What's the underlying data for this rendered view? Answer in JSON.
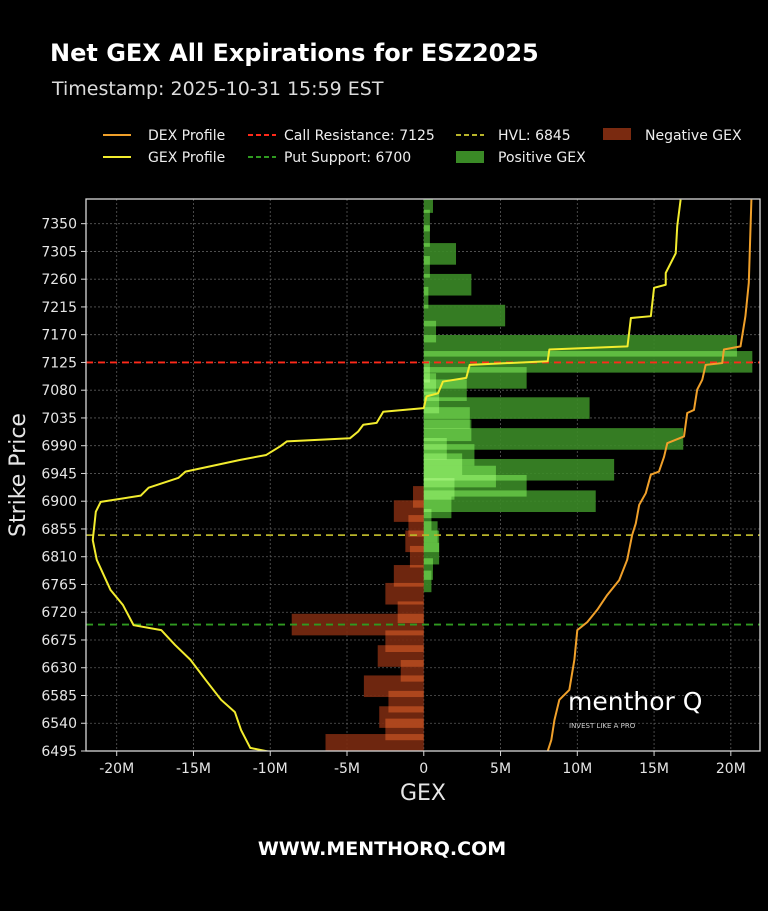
{
  "header": {
    "title": "Net GEX All Expirations for ESZ2025",
    "timestamp": "Timestamp: 2025-10-31 15:59 EST"
  },
  "footer": {
    "url": "WWW.MENTHORQ.COM"
  },
  "watermark": {
    "brand": "menthor Q",
    "tagline": "INVEST LIKE A PRO"
  },
  "legend": {
    "dex_profile": "DEX Profile",
    "gex_profile": "GEX Profile",
    "call_resistance": "Call Resistance: 7125",
    "put_support": "Put Support: 6700",
    "hvl": "HVL: 6845",
    "positive_gex": "Positive GEX",
    "negative_gex": "Negative GEX"
  },
  "colors": {
    "positive": "#3a8a26",
    "negative": "#7a2a10",
    "gex_profile": "#f2ec2e",
    "dex_profile": "#f0a02a",
    "call_resistance": "#ff2a1a",
    "put_support": "#2f9a20",
    "hvl": "#b8b42a"
  },
  "chart_data": {
    "type": "bar",
    "orientation": "horizontal",
    "title": "Net GEX All Expirations for ESZ2025",
    "xlabel": "GEX",
    "ylabel": "Strike Price",
    "xlim": [
      -22,
      21.9
    ],
    "ylim": [
      6495,
      7390
    ],
    "grid": true,
    "legend_position": "top",
    "x_ticks": [
      {
        "v": -20,
        "label": "-20M"
      },
      {
        "v": -15,
        "label": "-15M"
      },
      {
        "v": -10,
        "label": "-10M"
      },
      {
        "v": -5,
        "label": "-5M"
      },
      {
        "v": 0,
        "label": "0"
      },
      {
        "v": 5,
        "label": "5M"
      },
      {
        "v": 10,
        "label": "10M"
      },
      {
        "v": 15,
        "label": "15M"
      },
      {
        "v": 20,
        "label": "20M"
      }
    ],
    "y_ticks": [
      "7350",
      "7305",
      "7260",
      "7215",
      "7170",
      "7125",
      "7080",
      "7035",
      "6990",
      "6945",
      "6900",
      "6855",
      "6810",
      "6765",
      "6720",
      "6675",
      "6630",
      "6585",
      "6540",
      "6495"
    ],
    "levels": [
      {
        "name": "Call Resistance",
        "strike": 7125,
        "color": "#ff2a1a"
      },
      {
        "name": "HVL",
        "strike": 6845,
        "color": "#b8b42a"
      },
      {
        "name": "Put Support",
        "strike": 6700,
        "color": "#2f9a20"
      }
    ],
    "positive_gex": [
      {
        "strike": 7385,
        "value": 0.6
      },
      {
        "strike": 7355,
        "value": 0.4
      },
      {
        "strike": 7330,
        "value": 0.4
      },
      {
        "strike": 7301,
        "value": 2.1
      },
      {
        "strike": 7280,
        "value": 0.4
      },
      {
        "strike": 7251,
        "value": 3.1
      },
      {
        "strike": 7230,
        "value": 0.3
      },
      {
        "strike": 7201,
        "value": 5.3
      },
      {
        "strike": 7175,
        "value": 0.8
      },
      {
        "strike": 7152,
        "value": 20.4
      },
      {
        "strike": 7126,
        "value": 21.4
      },
      {
        "strike": 7110,
        "value": 0.4
      },
      {
        "strike": 7100,
        "value": 6.7
      },
      {
        "strike": 7090,
        "value": 0.8
      },
      {
        "strike": 7080,
        "value": 2.8
      },
      {
        "strike": 7060,
        "value": 1.0
      },
      {
        "strike": 7051,
        "value": 10.8
      },
      {
        "strike": 7035,
        "value": 3.0
      },
      {
        "strike": 7015,
        "value": 3.1
      },
      {
        "strike": 7001,
        "value": 16.9
      },
      {
        "strike": 6985,
        "value": 1.5
      },
      {
        "strike": 6975,
        "value": 3.3
      },
      {
        "strike": 6960,
        "value": 2.5
      },
      {
        "strike": 6951,
        "value": 12.4
      },
      {
        "strike": 6940,
        "value": 4.7
      },
      {
        "strike": 6925,
        "value": 6.7
      },
      {
        "strike": 6920,
        "value": 2.0
      },
      {
        "strike": 6900,
        "value": 11.2
      },
      {
        "strike": 6890,
        "value": 1.8
      },
      {
        "strike": 6870,
        "value": 0.5
      },
      {
        "strike": 6850,
        "value": 0.9
      },
      {
        "strike": 6835,
        "value": 1.0
      },
      {
        "strike": 6815,
        "value": 1.0
      },
      {
        "strike": 6790,
        "value": 0.6
      },
      {
        "strike": 6770,
        "value": 0.5
      }
    ],
    "negative_gex": [
      {
        "strike": 6907,
        "value": -0.7
      },
      {
        "strike": 6884,
        "value": -1.95
      },
      {
        "strike": 6860,
        "value": -1.0
      },
      {
        "strike": 6835,
        "value": -1.2
      },
      {
        "strike": 6810,
        "value": -0.9
      },
      {
        "strike": 6779,
        "value": -1.95
      },
      {
        "strike": 6750,
        "value": -2.5
      },
      {
        "strike": 6720,
        "value": -1.7
      },
      {
        "strike": 6700,
        "value": -8.6
      },
      {
        "strike": 6673,
        "value": -2.5
      },
      {
        "strike": 6649,
        "value": -3.0
      },
      {
        "strike": 6625,
        "value": -1.5
      },
      {
        "strike": 6600,
        "value": -3.9
      },
      {
        "strike": 6575,
        "value": -2.3
      },
      {
        "strike": 6550,
        "value": -2.9
      },
      {
        "strike": 6530,
        "value": -2.5
      },
      {
        "strike": 6505,
        "value": -6.4
      }
    ],
    "gex_profile": [
      [
        7389,
        16.73
      ],
      [
        7346,
        16.51
      ],
      [
        7302,
        16.41
      ],
      [
        7270,
        15.76
      ],
      [
        7251,
        15.76
      ],
      [
        7246,
        15.0
      ],
      [
        7200,
        14.79
      ],
      [
        7197,
        13.49
      ],
      [
        7151,
        13.27
      ],
      [
        7146,
        8.18
      ],
      [
        7127,
        8.07
      ],
      [
        7121,
        2.99
      ],
      [
        7100,
        2.77
      ],
      [
        7094,
        1.25
      ],
      [
        7075,
        0.93
      ],
      [
        7070,
        0.18
      ],
      [
        7051,
        0
      ],
      [
        7045,
        -2.64
      ],
      [
        7027,
        -3.07
      ],
      [
        7024,
        -3.94
      ],
      [
        7013,
        -4.27
      ],
      [
        7002,
        -4.81
      ],
      [
        6997,
        -8.92
      ],
      [
        6989,
        -9.35
      ],
      [
        6975,
        -10.26
      ],
      [
        6967,
        -11.95
      ],
      [
        6948,
        -15.52
      ],
      [
        6938,
        -15.97
      ],
      [
        6922,
        -17.92
      ],
      [
        6909,
        -18.44
      ],
      [
        6899,
        -21.04
      ],
      [
        6883,
        -21.36
      ],
      [
        6837,
        -21.56
      ],
      [
        6805,
        -21.3
      ],
      [
        6756,
        -20.4
      ],
      [
        6732,
        -19.6
      ],
      [
        6699,
        -18.9
      ],
      [
        6691,
        -17.1
      ],
      [
        6667,
        -16.2
      ],
      [
        6643,
        -15.2
      ],
      [
        6610,
        -14.2
      ],
      [
        6578,
        -13.2
      ],
      [
        6558,
        -12.3
      ],
      [
        6529,
        -11.9
      ],
      [
        6500,
        -11.3
      ],
      [
        6493,
        -9.9
      ]
    ],
    "dex_profile": [
      [
        7389,
        21.34
      ],
      [
        7254,
        21.17
      ],
      [
        7200,
        20.95
      ],
      [
        7151,
        20.63
      ],
      [
        7146,
        19.55
      ],
      [
        7124,
        19.44
      ],
      [
        7121,
        18.36
      ],
      [
        7097,
        18.14
      ],
      [
        7081,
        17.81
      ],
      [
        7048,
        17.6
      ],
      [
        7043,
        17.16
      ],
      [
        7005,
        16.95
      ],
      [
        6994,
        15.86
      ],
      [
        6972,
        15.65
      ],
      [
        6948,
        15.32
      ],
      [
        6943,
        14.79
      ],
      [
        6913,
        14.46
      ],
      [
        6894,
        14.03
      ],
      [
        6864,
        13.81
      ],
      [
        6845,
        13.57
      ],
      [
        6805,
        13.25
      ],
      [
        6772,
        12.73
      ],
      [
        6748,
        11.95
      ],
      [
        6724,
        11.3
      ],
      [
        6704,
        10.65
      ],
      [
        6691,
        10.0
      ],
      [
        6643,
        9.81
      ],
      [
        6594,
        9.48
      ],
      [
        6578,
        8.83
      ],
      [
        6545,
        8.51
      ],
      [
        6513,
        8.31
      ],
      [
        6493,
        8.05
      ]
    ]
  }
}
